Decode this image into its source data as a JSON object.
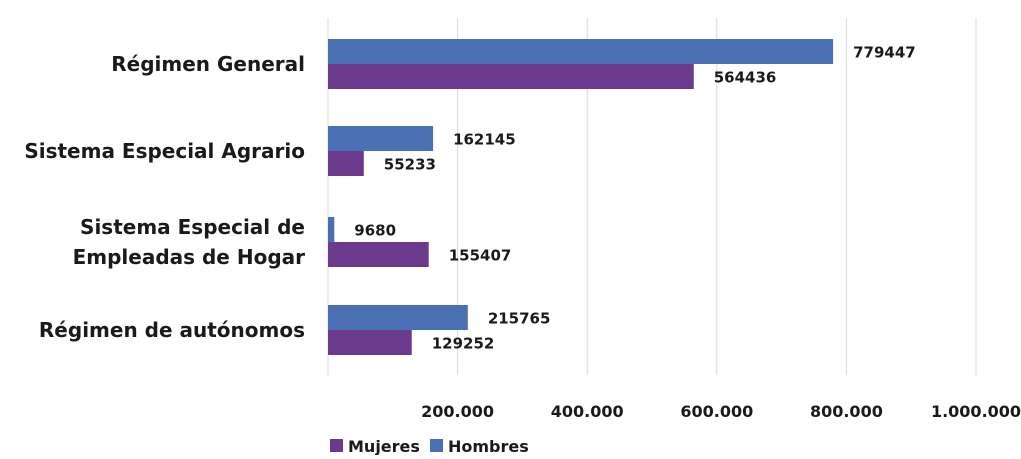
{
  "chart_data": {
    "type": "bar",
    "orientation": "horizontal",
    "categories": [
      "Régimen General",
      "Sistema Especial Agrario",
      "Sistema Especial de Empleadas de Hogar",
      "Régimen de autónomos"
    ],
    "category_lines": [
      [
        "Régimen General"
      ],
      [
        "Sistema Especial Agrario"
      ],
      [
        "Sistema Especial de",
        "Empleadas de Hogar"
      ],
      [
        "Régimen de autónomos"
      ]
    ],
    "series": [
      {
        "name": "Hombres",
        "color": "#4a6fb3",
        "values": [
          779447,
          162145,
          9680,
          215765
        ]
      },
      {
        "name": "Mujeres",
        "color": "#6b3a8c",
        "values": [
          564436,
          55233,
          155407,
          129252
        ]
      }
    ],
    "legend_order": [
      "Mujeres",
      "Hombres"
    ],
    "xlim": [
      0,
      1000000
    ],
    "x_ticks": [
      200000,
      400000,
      600000,
      800000,
      1000000
    ],
    "x_tick_labels": [
      "200.000",
      "400.000",
      "600.000",
      "800.000",
      "1.000.000"
    ],
    "grid": true,
    "legend": "bottom-left",
    "title": "",
    "xlabel": "",
    "ylabel": ""
  }
}
